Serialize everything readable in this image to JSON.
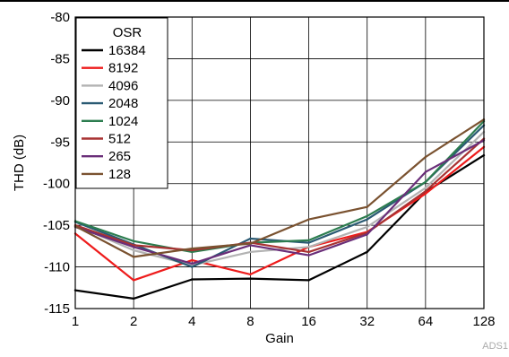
{
  "chart_data": {
    "type": "line",
    "xlabel": "Gain",
    "ylabel": "THD (dB)",
    "x_scale": "log2",
    "x": [
      1,
      2,
      4,
      8,
      16,
      32,
      64,
      128
    ],
    "x_tick_labels": [
      "1",
      "2",
      "4",
      "8",
      "16",
      "32",
      "64",
      "128"
    ],
    "ylim": [
      -115,
      -80
    ],
    "y_ticks": [
      -80,
      -85,
      -90,
      -95,
      -100,
      -105,
      -110,
      -115
    ],
    "y_tick_labels": [
      "-80",
      "-85",
      "-90",
      "-95",
      "-100",
      "-105",
      "-110",
      "-115"
    ],
    "grid": true,
    "legend": {
      "title": "OSR",
      "placement": "top-left"
    },
    "series": [
      {
        "name": "16384",
        "color": "#000000",
        "values": [
          -112.8,
          -113.8,
          -111.5,
          -111.4,
          -111.6,
          -108.2,
          -101.0,
          -96.6
        ]
      },
      {
        "name": "8192",
        "color": "#ee1c1c",
        "values": [
          -106.0,
          -111.6,
          -109.2,
          -110.9,
          -107.6,
          -105.8,
          -101.2,
          -95.6
        ]
      },
      {
        "name": "4096",
        "color": "#b3b3b3",
        "values": [
          -105.0,
          -108.0,
          -109.8,
          -108.2,
          -107.6,
          -105.2,
          -100.5,
          -93.8
        ]
      },
      {
        "name": "2048",
        "color": "#2a5a73",
        "values": [
          -104.6,
          -107.3,
          -110.0,
          -106.6,
          -107.1,
          -104.3,
          -99.8,
          -93.0
        ]
      },
      {
        "name": "1024",
        "color": "#2c7d4f",
        "values": [
          -104.5,
          -106.9,
          -108.2,
          -107.1,
          -106.8,
          -103.9,
          -99.8,
          -92.5
        ]
      },
      {
        "name": "512",
        "color": "#a83232",
        "values": [
          -105.0,
          -107.4,
          -108.0,
          -107.1,
          -108.2,
          -105.9,
          -100.9,
          -94.6
        ]
      },
      {
        "name": "265",
        "color": "#6a2e79",
        "values": [
          -105.2,
          -107.6,
          -109.6,
          -107.4,
          -108.6,
          -106.1,
          -98.6,
          -94.8
        ]
      },
      {
        "name": "128",
        "color": "#7a5230",
        "values": [
          -105.1,
          -108.8,
          -107.8,
          -107.2,
          -104.3,
          -102.8,
          -96.8,
          -92.3
        ]
      }
    ]
  },
  "figure_id": "ADS1"
}
